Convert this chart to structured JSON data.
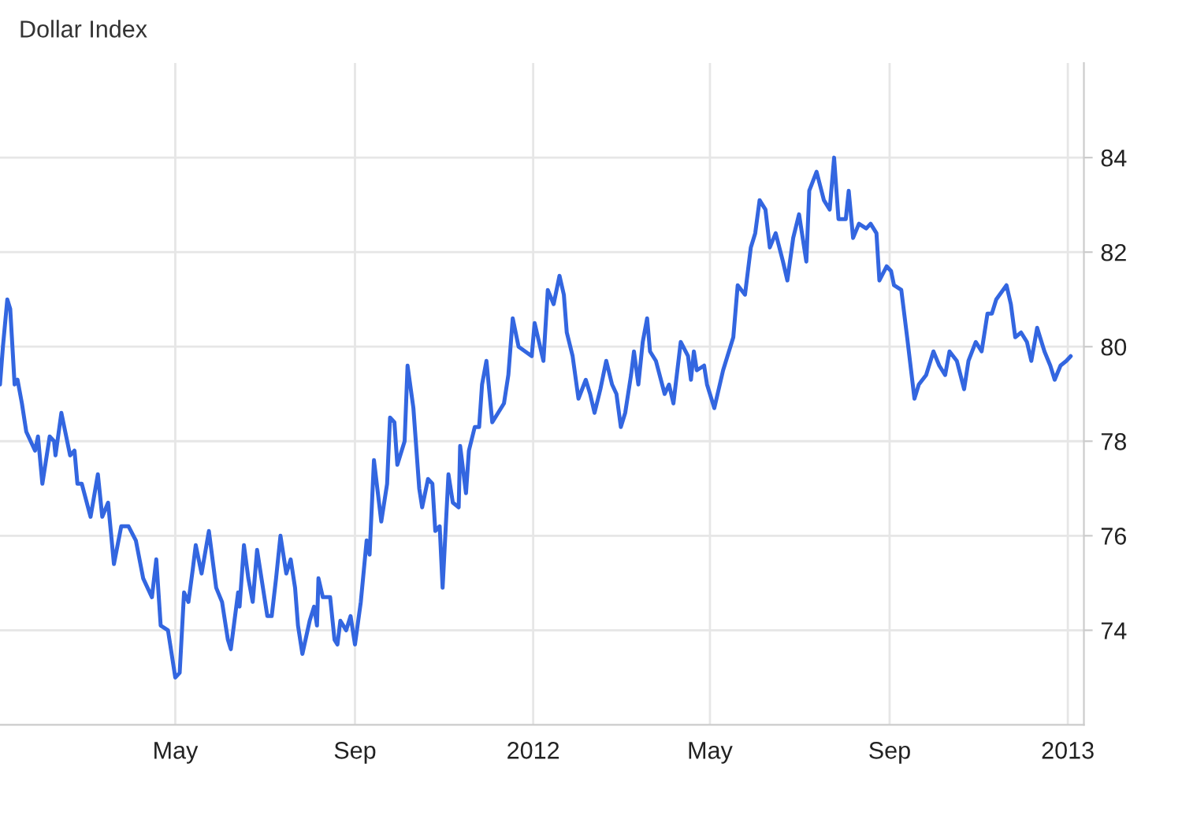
{
  "chart_data": {
    "type": "line",
    "title": "Dollar Index",
    "x": [
      "2011-01-01",
      "2011-01-03",
      "2011-01-06",
      "2011-01-08",
      "2011-01-11",
      "2011-01-13",
      "2011-01-16",
      "2011-01-19",
      "2011-01-25",
      "2011-01-27",
      "2011-01-30",
      "2011-02-04",
      "2011-02-07",
      "2011-02-08",
      "2011-02-12",
      "2011-02-18",
      "2011-02-21",
      "2011-02-23",
      "2011-02-26",
      "2011-03-04",
      "2011-03-09",
      "2011-03-12",
      "2011-03-16",
      "2011-03-20",
      "2011-03-25",
      "2011-03-30",
      "2011-04-04",
      "2011-04-09",
      "2011-04-15",
      "2011-04-18",
      "2011-04-21",
      "2011-04-26",
      "2011-05-01",
      "2011-05-04",
      "2011-05-07",
      "2011-05-10",
      "2011-05-13",
      "2011-05-15",
      "2011-05-19",
      "2011-05-24",
      "2011-05-29",
      "2011-06-02",
      "2011-06-06",
      "2011-06-08",
      "2011-06-13",
      "2011-06-14",
      "2011-06-17",
      "2011-06-20",
      "2011-06-23",
      "2011-06-26",
      "2011-07-03",
      "2011-07-06",
      "2011-07-09",
      "2011-07-12",
      "2011-07-16",
      "2011-07-19",
      "2011-07-22",
      "2011-07-24",
      "2011-07-27",
      "2011-08-01",
      "2011-08-04",
      "2011-08-06",
      "2011-08-07",
      "2011-08-10",
      "2011-08-15",
      "2011-08-18",
      "2011-08-20",
      "2011-08-22",
      "2011-08-26",
      "2011-08-29",
      "2011-09-01",
      "2011-09-05",
      "2011-09-09",
      "2011-09-11",
      "2011-09-14",
      "2011-09-19",
      "2011-09-23",
      "2011-09-25",
      "2011-09-28",
      "2011-09-30",
      "2011-10-05",
      "2011-10-07",
      "2011-10-11",
      "2011-10-15",
      "2011-10-17",
      "2011-10-21",
      "2011-10-24",
      "2011-10-26",
      "2011-10-29",
      "2011-10-31",
      "2011-11-04",
      "2011-11-07",
      "2011-11-11",
      "2011-11-12",
      "2011-11-16",
      "2011-11-18",
      "2011-11-22",
      "2011-11-25",
      "2011-11-27",
      "2011-11-30",
      "2011-12-04",
      "2011-12-08",
      "2011-12-12",
      "2011-12-15",
      "2011-12-18",
      "2011-12-22",
      "2011-12-31",
      "2012-01-02",
      "2012-01-08",
      "2012-01-11",
      "2012-01-15",
      "2012-01-19",
      "2012-01-22",
      "2012-01-24",
      "2012-01-28",
      "2012-02-01",
      "2012-02-06",
      "2012-02-09",
      "2012-02-12",
      "2012-02-16",
      "2012-02-20",
      "2012-02-24",
      "2012-02-27",
      "2012-03-01",
      "2012-03-04",
      "2012-03-08",
      "2012-03-10",
      "2012-03-13",
      "2012-03-16",
      "2012-03-19",
      "2012-03-21",
      "2012-03-25",
      "2012-03-31",
      "2012-04-03",
      "2012-04-06",
      "2012-04-11",
      "2012-04-16",
      "2012-04-18",
      "2012-04-20",
      "2012-04-22",
      "2012-04-27",
      "2012-04-29",
      "2012-05-04",
      "2012-05-10",
      "2012-05-14",
      "2012-05-17",
      "2012-05-20",
      "2012-05-25",
      "2012-05-29",
      "2012-06-01",
      "2012-06-04",
      "2012-06-08",
      "2012-06-11",
      "2012-06-15",
      "2012-06-20",
      "2012-06-23",
      "2012-06-27",
      "2012-07-01",
      "2012-07-06",
      "2012-07-08",
      "2012-07-13",
      "2012-07-18",
      "2012-07-22",
      "2012-07-25",
      "2012-07-28",
      "2012-08-02",
      "2012-08-04",
      "2012-08-07",
      "2012-08-11",
      "2012-08-16",
      "2012-08-19",
      "2012-08-23",
      "2012-08-25",
      "2012-08-30",
      "2012-09-02",
      "2012-09-04",
      "2012-09-09",
      "2012-09-13",
      "2012-09-18",
      "2012-09-21",
      "2012-09-26",
      "2012-10-01",
      "2012-10-05",
      "2012-10-09",
      "2012-10-12",
      "2012-10-17",
      "2012-10-22",
      "2012-10-25",
      "2012-10-30",
      "2012-11-03",
      "2012-11-07",
      "2012-11-10",
      "2012-11-13",
      "2012-11-20",
      "2012-11-23",
      "2012-11-26",
      "2012-11-30",
      "2012-12-04",
      "2012-12-07",
      "2012-12-11",
      "2012-12-16",
      "2012-12-20",
      "2012-12-23",
      "2012-12-27",
      "2012-12-31",
      "2013-01-03"
    ],
    "series": [
      {
        "color": "#3366e0",
        "values": [
          79.2,
          80.0,
          81.0,
          80.8,
          79.2,
          79.3,
          78.8,
          78.2,
          77.8,
          78.1,
          77.1,
          78.1,
          78.0,
          77.7,
          78.6,
          77.7,
          77.8,
          77.1,
          77.1,
          76.4,
          77.3,
          76.4,
          76.7,
          75.4,
          76.2,
          76.2,
          75.9,
          75.1,
          74.7,
          75.5,
          74.1,
          74.0,
          73.0,
          73.1,
          74.8,
          74.6,
          75.3,
          75.8,
          75.2,
          76.1,
          74.9,
          74.6,
          73.8,
          73.6,
          74.8,
          74.5,
          75.8,
          75.1,
          74.6,
          75.7,
          74.3,
          74.3,
          75.1,
          76.0,
          75.2,
          75.5,
          74.9,
          74.1,
          73.5,
          74.2,
          74.5,
          74.1,
          75.1,
          74.7,
          74.7,
          73.8,
          73.7,
          74.2,
          74.0,
          74.3,
          73.7,
          74.6,
          75.9,
          75.6,
          77.6,
          76.3,
          77.1,
          78.5,
          78.4,
          77.5,
          78.0,
          79.6,
          78.7,
          77.0,
          76.6,
          77.2,
          77.1,
          76.1,
          76.2,
          74.9,
          77.3,
          76.7,
          76.6,
          77.9,
          76.9,
          77.8,
          78.3,
          78.3,
          79.2,
          79.7,
          78.4,
          78.6,
          78.8,
          79.4,
          80.6,
          80.0,
          79.8,
          80.5,
          79.7,
          81.2,
          80.9,
          81.5,
          81.1,
          80.3,
          79.8,
          78.9,
          79.3,
          79.0,
          78.6,
          79.1,
          79.7,
          79.2,
          79.0,
          78.3,
          78.6,
          79.4,
          79.9,
          79.2,
          80.1,
          80.6,
          79.9,
          79.7,
          79.0,
          79.2,
          78.8,
          80.1,
          79.8,
          79.3,
          79.9,
          79.5,
          79.6,
          79.2,
          78.7,
          79.5,
          79.9,
          80.2,
          81.3,
          81.1,
          82.1,
          82.4,
          83.1,
          82.9,
          82.1,
          82.4,
          81.8,
          81.4,
          82.3,
          82.8,
          81.8,
          83.3,
          83.7,
          83.1,
          82.9,
          84.0,
          82.7,
          82.7,
          83.3,
          82.3,
          82.6,
          82.5,
          82.6,
          82.4,
          81.4,
          81.7,
          81.6,
          81.3,
          81.2,
          80.2,
          78.9,
          79.2,
          79.4,
          79.9,
          79.6,
          79.4,
          79.9,
          79.7,
          79.1,
          79.7,
          80.1,
          79.9,
          80.7,
          80.7,
          81.0,
          81.3,
          80.9,
          80.2,
          80.3,
          80.1,
          79.7,
          80.4,
          79.9,
          79.6,
          79.3,
          79.6,
          79.7,
          79.8
        ]
      }
    ],
    "xlim": [
      "2011-01-01",
      "2013-01-12"
    ],
    "xticks": [
      {
        "value": "2011-05-01",
        "label": "May"
      },
      {
        "value": "2011-09-01",
        "label": "Sep"
      },
      {
        "value": "2012-01-01",
        "label": "2012"
      },
      {
        "value": "2012-05-01",
        "label": "May"
      },
      {
        "value": "2012-09-01",
        "label": "Sep"
      },
      {
        "value": "2013-01-01",
        "label": "2013"
      }
    ],
    "ylim": [
      72,
      86
    ],
    "yticks": [
      74,
      76,
      78,
      80,
      82,
      84
    ],
    "grid": true,
    "line_style": "solid",
    "marker": "none"
  }
}
